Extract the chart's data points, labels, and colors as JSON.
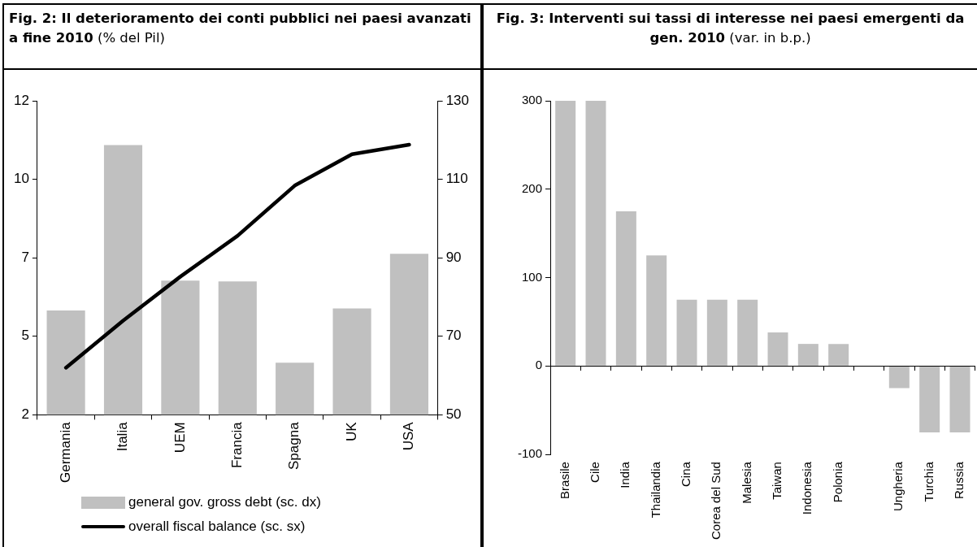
{
  "chart_data": [
    {
      "type": "bar",
      "title": "Fig. 2: Il deterioramento dei conti pubblici nei paesi avanzati a fine 2010",
      "subtitle": "(% del Pil)",
      "categories": [
        "Germania",
        "Italia",
        "UEM",
        "Francia",
        "Spagna",
        "UK",
        "USA"
      ],
      "series": [
        {
          "name": "general gov. gross debt (sc. dx)",
          "color": "#c0c0c0",
          "axis": "y2",
          "values": [
            76.6,
            118.7,
            84.2,
            84.0,
            63.3,
            77.1,
            91.0
          ]
        },
        {
          "name": "overall fiscal balance (sc. sx)",
          "type": "line",
          "color": "#000000",
          "values": [
            4.0,
            5.5,
            6.9,
            8.2,
            9.8,
            10.8,
            11.1
          ]
        }
      ],
      "ylim": [
        2.5,
        12.5
      ],
      "yticks": [
        {
          "value": 2.5,
          "label": "2"
        },
        5,
        {
          "value": 7.5,
          "label": "7"
        },
        10,
        {
          "value": 12.5,
          "label": "12"
        }
      ],
      "y2lim": [
        50,
        130
      ],
      "y2ticks": [
        50,
        70,
        90,
        110,
        130
      ],
      "legend": "bottom",
      "grid": false
    },
    {
      "type": "bar",
      "title": "Fig. 3: Interventi sui tassi di interesse nei paesi emergenti da gen. 2010",
      "subtitle": "(var. in b.p.)",
      "categories": [
        "Brasile",
        "Cile",
        "India",
        "Thailandia",
        "Cina",
        "Corea del Sud",
        "Malesia",
        "Taiwan",
        "Indonesia",
        "Polonia",
        null,
        "Ungheria",
        "Turchia",
        "Russia"
      ],
      "values": [
        300,
        300,
        175,
        125,
        75,
        75,
        75,
        38,
        25,
        25,
        null,
        -25,
        -75,
        -75
      ],
      "color": "#c0c0c0",
      "ylim": [
        -100,
        300
      ],
      "yticks": [
        -100,
        0,
        100,
        200,
        300
      ],
      "ref_lines": [
        {
          "axis": "y",
          "value": 0,
          "color": "#000000"
        }
      ],
      "legend": false,
      "grid": false
    }
  ]
}
